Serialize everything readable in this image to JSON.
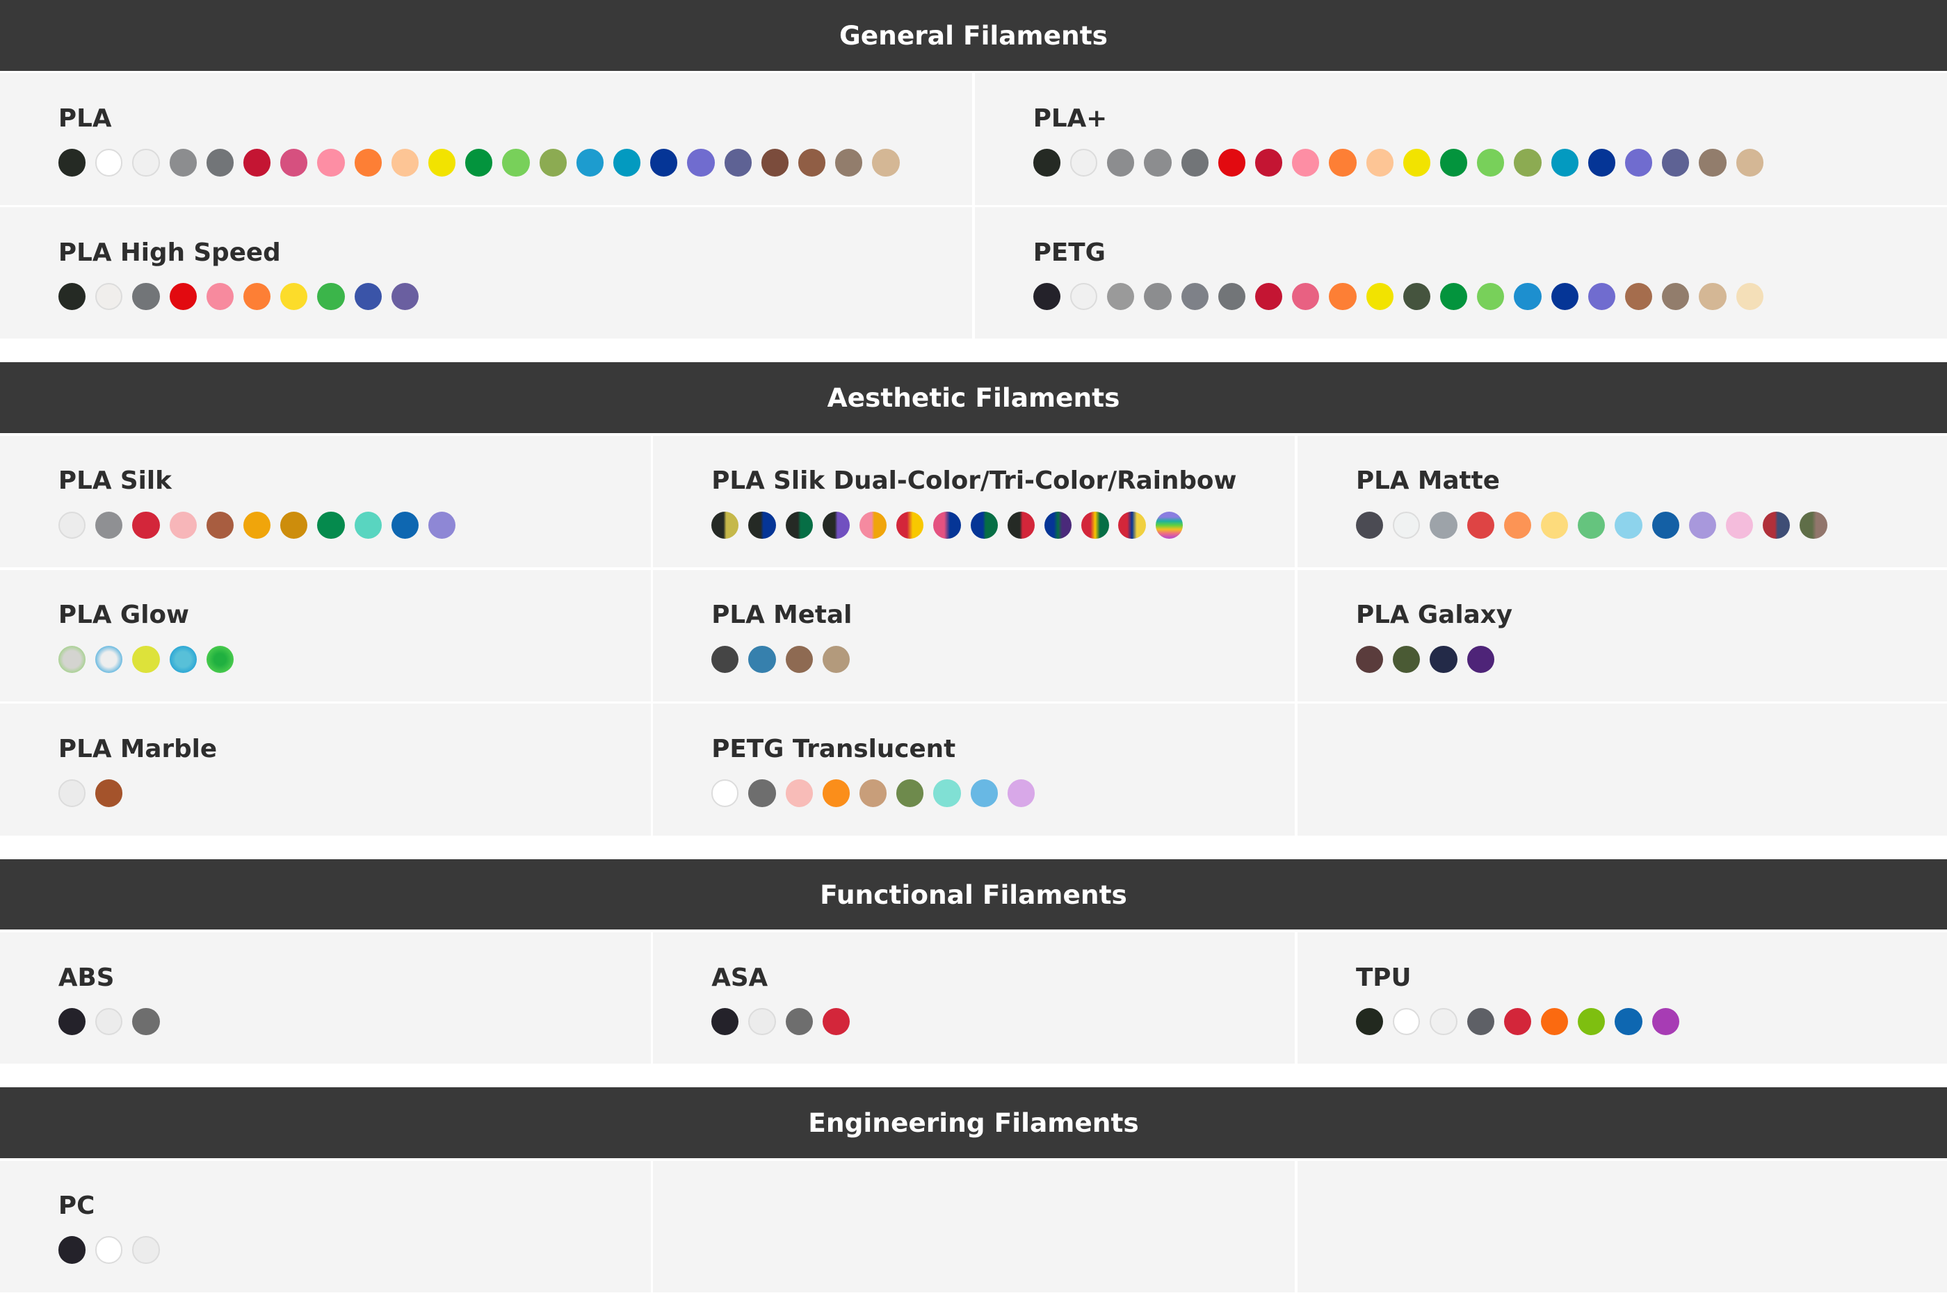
{
  "sections": [
    {
      "title": "General Filaments",
      "cols": 2,
      "items": [
        {
          "name": "PLA",
          "colors": [
            "#252a24",
            "#ffffff",
            "#f0f0f0",
            "#8c8d8f",
            "#727578",
            "#c41533",
            "#d6507f",
            "#fd8ea4",
            "#fd7f35",
            "#fdc595",
            "#f2e300",
            "#03943d",
            "#78d05a",
            "#8cab52",
            "#1d9ccf",
            "#039ac0",
            "#053596",
            "#706ccf",
            "#5e6294",
            "#7b4c3c",
            "#905e45",
            "#927d6c",
            "#d4b795"
          ]
        },
        {
          "name": "PLA+",
          "colors": [
            "#252a24",
            "#f0f0f0",
            "#8c8d8f",
            "#8c8d8f",
            "#727578",
            "#e20a10",
            "#c41533",
            "#fd8ea4",
            "#fd7f35",
            "#fdc595",
            "#f2e300",
            "#03943d",
            "#78d05a",
            "#8cab52",
            "#039ac0",
            "#053596",
            "#706ccf",
            "#5e6294",
            "#927d6c",
            "#d4b795"
          ]
        },
        {
          "name": "PLA High Speed",
          "colors": [
            "#252a24",
            "#f0eeec",
            "#727578",
            "#e20a10",
            "#f78a9e",
            "#fd7f35",
            "#fcdc2a",
            "#3bb54a",
            "#3a54a8",
            "#6a5fa0"
          ]
        },
        {
          "name": "PETG",
          "colors": [
            "#24222a",
            "#f0f0f0",
            "#9a9a9a",
            "#8c8d8f",
            "#7e8188",
            "#727578",
            "#c41533",
            "#e86182",
            "#fd7f35",
            "#f2e300",
            "#45543e",
            "#03943d",
            "#78d05a",
            "#1d8fcf",
            "#053596",
            "#706ccf",
            "#a56d4d",
            "#927d6c",
            "#d4b795",
            "#f4dfb8"
          ]
        }
      ]
    },
    {
      "title": "Aesthetic Filaments",
      "cols": 3,
      "items": [
        {
          "name": "PLA Silk",
          "colors": [
            "#ececec",
            "#8f9093",
            "#d3263a",
            "#f7b6b9",
            "#a85d40",
            "#f0a50b",
            "#cd8d0c",
            "#058a4d",
            "#59d5c0",
            "#0e67b1",
            "#8e87d5"
          ]
        },
        {
          "name": "PLA Slik Dual-Color/Tri-Color/Rainbow",
          "colors": [
            "linear-gradient(90deg,#252a25 45%,#c5b84a 55%)",
            "linear-gradient(90deg,#252a25 45%,#053596 55%)",
            "linear-gradient(90deg,#252a25 45%,#066e45 55%)",
            "linear-gradient(90deg,#252a25 45%,#7150c0 55%)",
            "linear-gradient(90deg,#f58aa0 45%,#f0a50b 55%)",
            "linear-gradient(90deg,#d3263a 40%,#f8c800 60%)",
            "linear-gradient(90deg,#e45280 40%,#053596 60%)",
            "linear-gradient(90deg,#053596 45%,#066e45 55%)",
            "linear-gradient(90deg,#252a25 45%,#d3263a 55%)",
            "linear-gradient(90deg,#053596 35%,#066e45 50%,#4a2a7a 65%)",
            "linear-gradient(90deg,#d3263a 33%,#f8c800 50%,#066e45 67%)",
            "linear-gradient(90deg,#d3263a 33%,#053596 50%,#f0d040 67%)",
            "linear-gradient(180deg,#8a7ee0 20%,#20b0a0 35%,#60d040 50%,#f0c020 65%,#f07080 80%,#c050c0 95%)"
          ]
        },
        {
          "name": "PLA Matte",
          "colors": [
            "#4b4b53",
            "#f0f2f2",
            "#9da3a9",
            "#de4444",
            "#fc9455",
            "#fddb7c",
            "#65c47e",
            "#8dd3ec",
            "#1460a5",
            "#a898dc",
            "#f4bcdc",
            "linear-gradient(90deg,#b0303a 45%,#3e4d75 55%)",
            "linear-gradient(90deg,#5f6e48 45%,#92766c 60%)"
          ]
        },
        {
          "name": "PLA Glow",
          "colors": [
            "radial-gradient(circle,#d4d4d0 45%,#7ad050 100%)",
            "radial-gradient(circle,#eeeeee 40%,#1a9ad8 90%)",
            "#dde23a",
            "radial-gradient(circle,#58c0d8 40%,#1298d3 90%)",
            "radial-gradient(circle,#20b040 30%,#52d050 80%)"
          ]
        },
        {
          "name": "PLA Metal",
          "colors": [
            "#454545",
            "#3680ad",
            "#8e6a52",
            "#b39a7c"
          ]
        },
        {
          "name": "PLA Galaxy",
          "colors": [
            "#5a3c3c",
            "#4a5a34",
            "#232a48",
            "#4e2478"
          ]
        },
        {
          "name": "PLA Marble",
          "colors": [
            "#ebebeb",
            "#a4532b"
          ]
        },
        {
          "name": "PETG Translucent",
          "colors": [
            "#ffffff",
            "#6e6e6e",
            "#f8bcb8",
            "#fb8e1a",
            "#c89e7a",
            "#6e8a4c",
            "#80e0d4",
            "#68b8e4",
            "#d8a8e8"
          ]
        },
        {
          "name": "",
          "colors": []
        }
      ]
    },
    {
      "title": "Functional Filaments",
      "cols": 3,
      "items": [
        {
          "name": "ABS",
          "colors": [
            "#24222a",
            "#ececec",
            "#6e6e6e"
          ]
        },
        {
          "name": "ASA",
          "colors": [
            "#24222a",
            "#ececec",
            "#6e6e6e",
            "#d3263a"
          ]
        },
        {
          "name": "TPU",
          "colors": [
            "#22291f",
            "#ffffff",
            "#f0f0f0",
            "#5e6066",
            "#d3263a",
            "#fb6a10",
            "#7ebf10",
            "#0e67b1",
            "#a73cb4"
          ]
        }
      ]
    },
    {
      "title": "Engineering Filaments",
      "cols": 3,
      "items": [
        {
          "name": "PC",
          "colors": [
            "#24222a",
            "#ffffff",
            "#ececec"
          ]
        },
        {
          "name": "",
          "colors": []
        },
        {
          "name": "",
          "colors": []
        }
      ]
    }
  ]
}
